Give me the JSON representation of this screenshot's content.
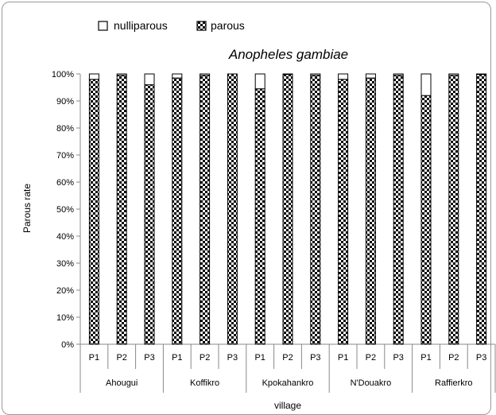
{
  "chart_data": {
    "type": "bar",
    "stacked": true,
    "percent_stacked": true,
    "title": "Anopheles gambiae",
    "xlabel": "village",
    "ylabel": "Parous rate",
    "ylim": [
      0,
      100
    ],
    "y_ticks": [
      "0%",
      "10%",
      "20%",
      "30%",
      "40%",
      "50%",
      "60%",
      "70%",
      "80%",
      "90%",
      "100%"
    ],
    "grid": false,
    "legend_position": "top",
    "groups": [
      {
        "name": "Ahougui",
        "categories": [
          "P1",
          "P2",
          "P3"
        ]
      },
      {
        "name": "Koffikro",
        "categories": [
          "P1",
          "P2",
          "P3"
        ]
      },
      {
        "name": "Kpokahankro",
        "categories": [
          "P1",
          "P2",
          "P3"
        ]
      },
      {
        "name": "N'Douakro",
        "categories": [
          "P1",
          "P2",
          "P3"
        ]
      },
      {
        "name": "Raffierkro",
        "categories": [
          "P1",
          "P2",
          "P3"
        ]
      }
    ],
    "series": [
      {
        "name": "parous",
        "pattern": "checkerboard",
        "values": [
          98,
          99.5,
          96,
          98.5,
          99.5,
          100,
          94.5,
          99.8,
          99.5,
          98,
          98.5,
          99.5,
          92,
          99.5,
          99.8
        ]
      },
      {
        "name": "nulliparous",
        "pattern": "solid-white",
        "values": [
          2,
          0.5,
          4,
          1.5,
          0.5,
          0,
          5.5,
          0.2,
          0.5,
          2,
          1.5,
          0.5,
          8,
          0.5,
          0.2
        ]
      }
    ]
  },
  "colors": {
    "bar_outline": "#000000",
    "axis": "#888888",
    "text": "#000000",
    "frame": "#9a9a9a"
  }
}
